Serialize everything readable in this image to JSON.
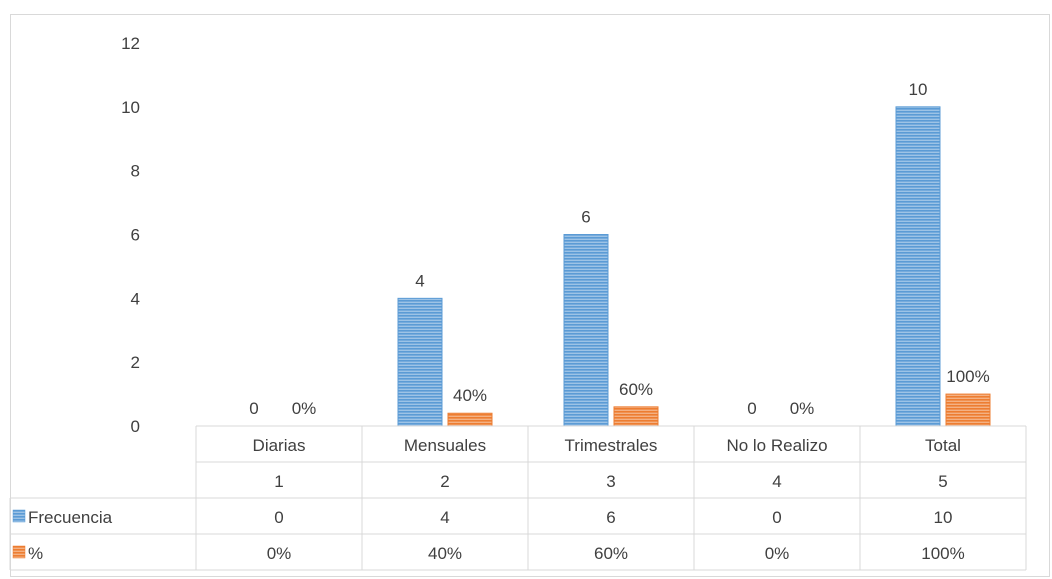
{
  "chart_data": {
    "type": "bar",
    "title": "",
    "xlabel": "",
    "ylabel": "",
    "ylim": [
      0,
      12
    ],
    "yticks": [
      0,
      2,
      4,
      6,
      8,
      10,
      12
    ],
    "grid": false,
    "legend": "data-table",
    "categories": [
      "Diarias",
      "Mensuales",
      "Trimestrales",
      "No lo Realizo",
      "Total"
    ],
    "category_numbers": [
      "1",
      "2",
      "3",
      "4",
      "5"
    ],
    "series": [
      {
        "name": "Frecuencia",
        "values": [
          0,
          4,
          6,
          0,
          10
        ],
        "labels": [
          "0",
          "4",
          "6",
          "0",
          "10"
        ],
        "color": "#5b9bd5",
        "stripe_color": "#9dc3e6"
      },
      {
        "name": "%",
        "values": [
          0,
          0.4,
          0.6,
          0,
          1
        ],
        "labels": [
          "0%",
          "40%",
          "60%",
          "0%",
          "100%"
        ],
        "color": "#ed7d31",
        "stripe_color": "#f4b183"
      }
    ]
  }
}
